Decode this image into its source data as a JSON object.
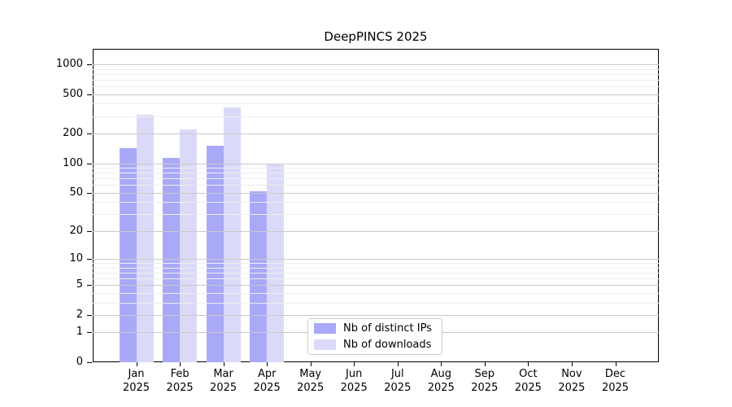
{
  "chart_data": {
    "type": "bar",
    "title": "DeepPINCS 2025",
    "yscale": "log1p",
    "categories": [
      "Jan",
      "Feb",
      "Mar",
      "Apr",
      "May",
      "Jun",
      "Jul",
      "Aug",
      "Sep",
      "Oct",
      "Nov",
      "Dec"
    ],
    "category_year": "2025",
    "series": [
      {
        "name": "Nb of distinct IPs",
        "color": "#a9a9f8",
        "values": [
          143,
          113,
          151,
          52,
          0,
          0,
          0,
          0,
          0,
          0,
          0,
          0
        ]
      },
      {
        "name": "Nb of downloads",
        "color": "#dadaf8",
        "values": [
          310,
          220,
          370,
          97,
          0,
          0,
          0,
          0,
          0,
          0,
          0,
          0
        ]
      }
    ],
    "y_major_ticks": [
      0,
      1,
      2,
      5,
      10,
      20,
      50,
      100,
      200,
      500,
      1000
    ],
    "y_minor_gridlines": [
      3,
      4,
      6,
      7,
      8,
      9,
      30,
      40,
      60,
      70,
      80,
      90,
      300,
      400,
      600,
      700,
      800,
      900
    ],
    "ylim": [
      0,
      1430
    ],
    "grid": "on",
    "legend_position": "lower center",
    "colors": {
      "major_grid": "#c9c9c9",
      "minor_grid": "#ededed",
      "spine": "#000000",
      "background": "#ffffff"
    }
  }
}
